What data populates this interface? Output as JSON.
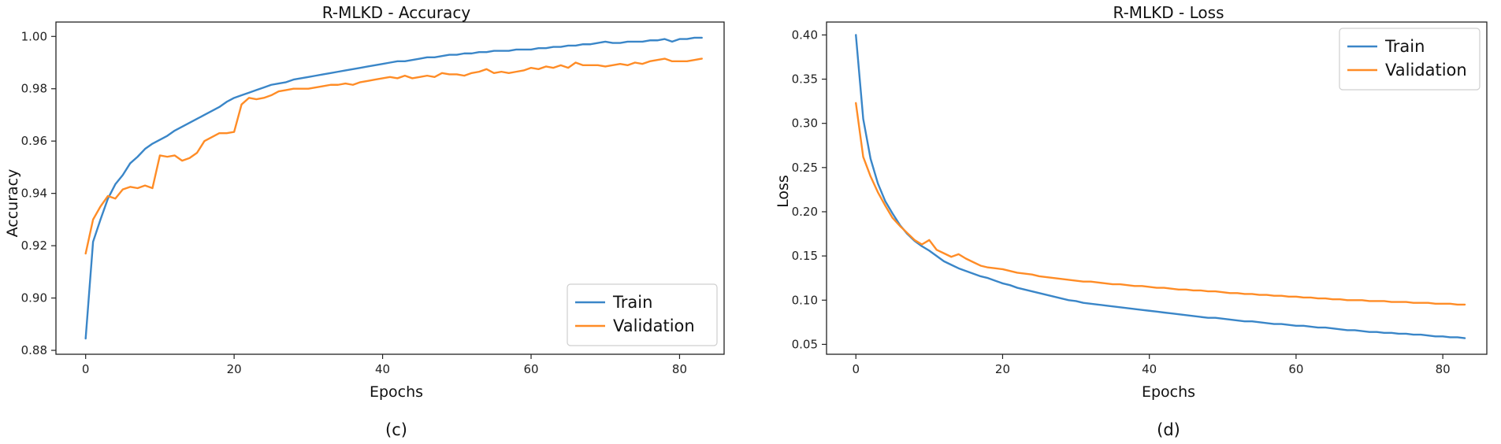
{
  "colors": {
    "train": "#3a86c8",
    "validation": "#ff8c26"
  },
  "chart_data": [
    {
      "id": "accuracy",
      "type": "line",
      "title": "R-MLKD -  Accuracy",
      "xlabel": "Epochs",
      "ylabel": "Accuracy",
      "caption": "(c)",
      "legend_position": "lower-right",
      "xlim": [
        -4,
        86
      ],
      "ylim": [
        0.8785,
        1.0055
      ],
      "xticks": [
        0,
        20,
        40,
        60,
        80
      ],
      "xtick_labels": [
        "0",
        "20",
        "40",
        "60",
        "80"
      ],
      "yticks": [
        0.88,
        0.9,
        0.92,
        0.94,
        0.96,
        0.98,
        1.0
      ],
      "ytick_labels": [
        "0.88",
        "0.90",
        "0.92",
        "0.94",
        "0.96",
        "0.98",
        "1.00"
      ],
      "series": [
        {
          "name": "Train",
          "color_key": "train",
          "values": [
            0.8845,
            0.9215,
            0.93,
            0.938,
            0.9435,
            0.947,
            0.9515,
            0.954,
            0.957,
            0.959,
            0.9605,
            0.962,
            0.964,
            0.9655,
            0.967,
            0.9685,
            0.97,
            0.9715,
            0.973,
            0.975,
            0.9765,
            0.9775,
            0.9785,
            0.9795,
            0.9805,
            0.9815,
            0.982,
            0.9825,
            0.9835,
            0.984,
            0.9845,
            0.985,
            0.9855,
            0.986,
            0.9865,
            0.987,
            0.9875,
            0.988,
            0.9885,
            0.989,
            0.9895,
            0.99,
            0.9905,
            0.9905,
            0.991,
            0.9915,
            0.992,
            0.992,
            0.9925,
            0.993,
            0.993,
            0.9935,
            0.9935,
            0.994,
            0.994,
            0.9945,
            0.9945,
            0.9945,
            0.995,
            0.995,
            0.995,
            0.9955,
            0.9955,
            0.996,
            0.996,
            0.9965,
            0.9965,
            0.997,
            0.997,
            0.9975,
            0.998,
            0.9975,
            0.9975,
            0.998,
            0.998,
            0.998,
            0.9985,
            0.9985,
            0.999,
            0.998,
            0.999,
            0.999,
            0.9995,
            0.9995
          ]
        },
        {
          "name": "Validation",
          "color_key": "validation",
          "values": [
            0.917,
            0.93,
            0.935,
            0.939,
            0.938,
            0.9415,
            0.9425,
            0.942,
            0.943,
            0.942,
            0.9545,
            0.954,
            0.9545,
            0.9525,
            0.9535,
            0.9555,
            0.96,
            0.9615,
            0.963,
            0.963,
            0.9635,
            0.974,
            0.9765,
            0.976,
            0.9765,
            0.9775,
            0.979,
            0.9795,
            0.98,
            0.98,
            0.98,
            0.9805,
            0.981,
            0.9815,
            0.9815,
            0.982,
            0.9815,
            0.9825,
            0.983,
            0.9835,
            0.984,
            0.9845,
            0.984,
            0.985,
            0.984,
            0.9845,
            0.985,
            0.9845,
            0.986,
            0.9855,
            0.9855,
            0.985,
            0.986,
            0.9865,
            0.9875,
            0.986,
            0.9865,
            0.986,
            0.9865,
            0.987,
            0.988,
            0.9875,
            0.9885,
            0.988,
            0.989,
            0.988,
            0.99,
            0.989,
            0.989,
            0.989,
            0.9885,
            0.989,
            0.9895,
            0.989,
            0.99,
            0.9895,
            0.9905,
            0.991,
            0.9915,
            0.9905,
            0.9905,
            0.9905,
            0.991,
            0.9915
          ]
        }
      ]
    },
    {
      "id": "loss",
      "type": "line",
      "title": "R-MLKD  -  Loss",
      "xlabel": "Epochs",
      "ylabel": "Loss",
      "caption": "(d)",
      "legend_position": "upper-right",
      "xlim": [
        -4,
        86
      ],
      "ylim": [
        0.0388,
        0.4146
      ],
      "xticks": [
        0,
        20,
        40,
        60,
        80
      ],
      "xtick_labels": [
        "0",
        "20",
        "40",
        "60",
        "80"
      ],
      "yticks": [
        0.05,
        0.1,
        0.15,
        0.2,
        0.25,
        0.3,
        0.35,
        0.4
      ],
      "ytick_labels": [
        "0.05",
        "0.10",
        "0.15",
        "0.20",
        "0.25",
        "0.30",
        "0.35",
        "0.40"
      ],
      "series": [
        {
          "name": "Train",
          "color_key": "train",
          "values": [
            0.4,
            0.305,
            0.26,
            0.232,
            0.212,
            0.198,
            0.185,
            0.175,
            0.167,
            0.161,
            0.156,
            0.15,
            0.144,
            0.14,
            0.136,
            0.133,
            0.13,
            0.127,
            0.125,
            0.122,
            0.119,
            0.117,
            0.114,
            0.112,
            0.11,
            0.108,
            0.106,
            0.104,
            0.102,
            0.1,
            0.099,
            0.097,
            0.096,
            0.095,
            0.094,
            0.093,
            0.092,
            0.091,
            0.09,
            0.089,
            0.088,
            0.087,
            0.086,
            0.085,
            0.084,
            0.083,
            0.082,
            0.081,
            0.08,
            0.08,
            0.079,
            0.078,
            0.077,
            0.076,
            0.076,
            0.075,
            0.074,
            0.073,
            0.073,
            0.072,
            0.071,
            0.071,
            0.07,
            0.069,
            0.069,
            0.068,
            0.067,
            0.066,
            0.066,
            0.065,
            0.064,
            0.064,
            0.063,
            0.063,
            0.062,
            0.062,
            0.061,
            0.061,
            0.06,
            0.059,
            0.059,
            0.058,
            0.058,
            0.057
          ]
        },
        {
          "name": "Validation",
          "color_key": "validation",
          "values": [
            0.323,
            0.262,
            0.24,
            0.222,
            0.207,
            0.193,
            0.184,
            0.176,
            0.168,
            0.163,
            0.168,
            0.157,
            0.153,
            0.149,
            0.152,
            0.147,
            0.143,
            0.139,
            0.137,
            0.136,
            0.135,
            0.133,
            0.131,
            0.13,
            0.129,
            0.127,
            0.126,
            0.125,
            0.124,
            0.123,
            0.122,
            0.121,
            0.121,
            0.12,
            0.119,
            0.118,
            0.118,
            0.117,
            0.116,
            0.116,
            0.115,
            0.114,
            0.114,
            0.113,
            0.112,
            0.112,
            0.111,
            0.111,
            0.11,
            0.11,
            0.109,
            0.108,
            0.108,
            0.107,
            0.107,
            0.106,
            0.106,
            0.105,
            0.105,
            0.104,
            0.104,
            0.103,
            0.103,
            0.102,
            0.102,
            0.101,
            0.101,
            0.1,
            0.1,
            0.1,
            0.099,
            0.099,
            0.099,
            0.098,
            0.098,
            0.098,
            0.097,
            0.097,
            0.097,
            0.096,
            0.096,
            0.096,
            0.095,
            0.095
          ]
        }
      ]
    }
  ]
}
